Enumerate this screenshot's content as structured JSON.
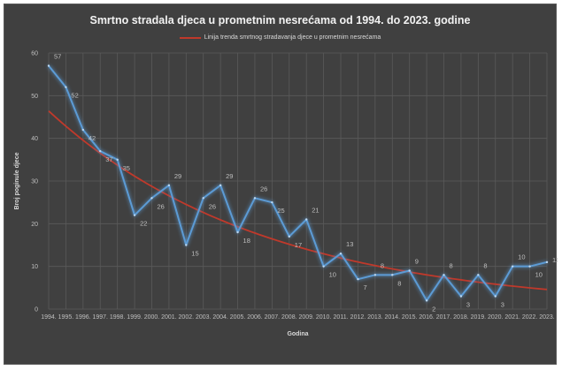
{
  "chart_data": {
    "type": "line",
    "title": "Smrtno stradala djeca u prometnim nesrećama od 1994. do 2023. godine",
    "xlabel": "Godina",
    "ylabel": "Broj poginule djece",
    "ylim": [
      0,
      60
    ],
    "yticks": [
      "0",
      "10",
      "20",
      "30",
      "40",
      "50",
      "60"
    ],
    "grid": true,
    "legend": "top",
    "categories": [
      "1994.",
      "1995.",
      "1996.",
      "1997.",
      "1998.",
      "1999.",
      "2000.",
      "2001.",
      "2002.",
      "2003.",
      "2004.",
      "2005.",
      "2006.",
      "2007.",
      "2008.",
      "2009.",
      "2010.",
      "2011.",
      "2012.",
      "2013.",
      "2014.",
      "2015.",
      "2016.",
      "2017.",
      "2018.",
      "2019.",
      "2020.",
      "2021.",
      "2022.",
      "2023."
    ],
    "series": [
      {
        "values": [
          57,
          52,
          42,
          37,
          35,
          22,
          26,
          29,
          15,
          26,
          29,
          18,
          26,
          25,
          17,
          21,
          10,
          13,
          7,
          8,
          8,
          9,
          2,
          8,
          3,
          8,
          3,
          10,
          10,
          11
        ],
        "color": "#5b9bd5"
      },
      {
        "name": "Linija trenda smrtnog stradavanja djece u prometnim nesrećama",
        "type": "trend",
        "color": "#c0392b"
      }
    ]
  }
}
